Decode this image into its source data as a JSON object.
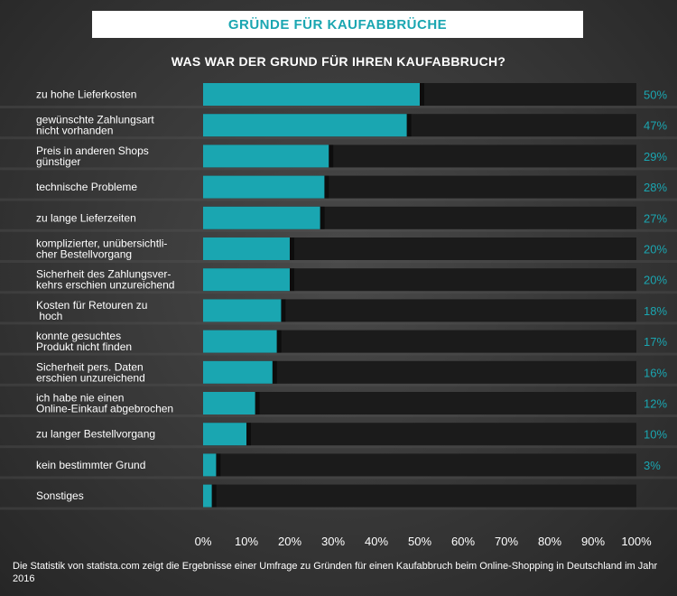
{
  "header": {
    "title": "GRÜNDE FÜR KAUFABBRÜCHE"
  },
  "chart_data": {
    "type": "bar",
    "orientation": "horizontal",
    "title": "WAS WAR DER GRUND FÜR IHREN KAUFABBRUCH?",
    "categories": [
      [
        "zu hohe Lieferkosten"
      ],
      [
        "gewünschte Zahlungsart",
        "nicht vorhanden"
      ],
      [
        "Preis in anderen Shops",
        "günstiger"
      ],
      [
        "technische Probleme"
      ],
      [
        "zu lange Lieferzeiten"
      ],
      [
        "komplizierter, unübersichtli-",
        "cher Bestellvorgang"
      ],
      [
        "Sicherheit des Zahlungsver-",
        "kehrs erschien unzureichend"
      ],
      [
        " Kosten für Retouren zu",
        " hoch"
      ],
      [
        "konnte gesuchtes",
        "Produkt nicht finden"
      ],
      [
        "Sicherheit pers. Daten",
        "erschien unzureichend"
      ],
      [
        "ich habe nie einen",
        "Online-Einkauf abgebrochen"
      ],
      [
        "zu langer Bestellvorgang"
      ],
      [
        "kein bestimmter Grund"
      ],
      [
        "Sonstiges"
      ]
    ],
    "values": [
      50,
      47,
      29,
      28,
      27,
      20,
      20,
      18,
      17,
      16,
      12,
      10,
      3,
      2
    ],
    "value_labels": [
      "50%",
      "47%",
      "29%",
      "28%",
      "27%",
      "20%",
      "20%",
      "18%",
      "17%",
      "16%",
      "12%",
      "10%",
      "3%",
      ""
    ],
    "xlim": [
      0,
      100
    ],
    "xticks": [
      0,
      10,
      20,
      30,
      40,
      50,
      60,
      70,
      80,
      90,
      100
    ],
    "xtick_labels": [
      "0%",
      "10%",
      "20%",
      "30%",
      "40%",
      "50%",
      "60%",
      "70%",
      "80%",
      "90%",
      "100%"
    ],
    "colors": {
      "bar": "#1aa6b1",
      "track": "#1b1b1b",
      "value_label": "#1aa6b1"
    }
  },
  "footnote": "Die Statistik von statista.com zeigt die Ergebnisse einer Umfrage zu Gründen für einen Kaufabbruch beim Online-Shopping in Deutschland im Jahr 2016"
}
